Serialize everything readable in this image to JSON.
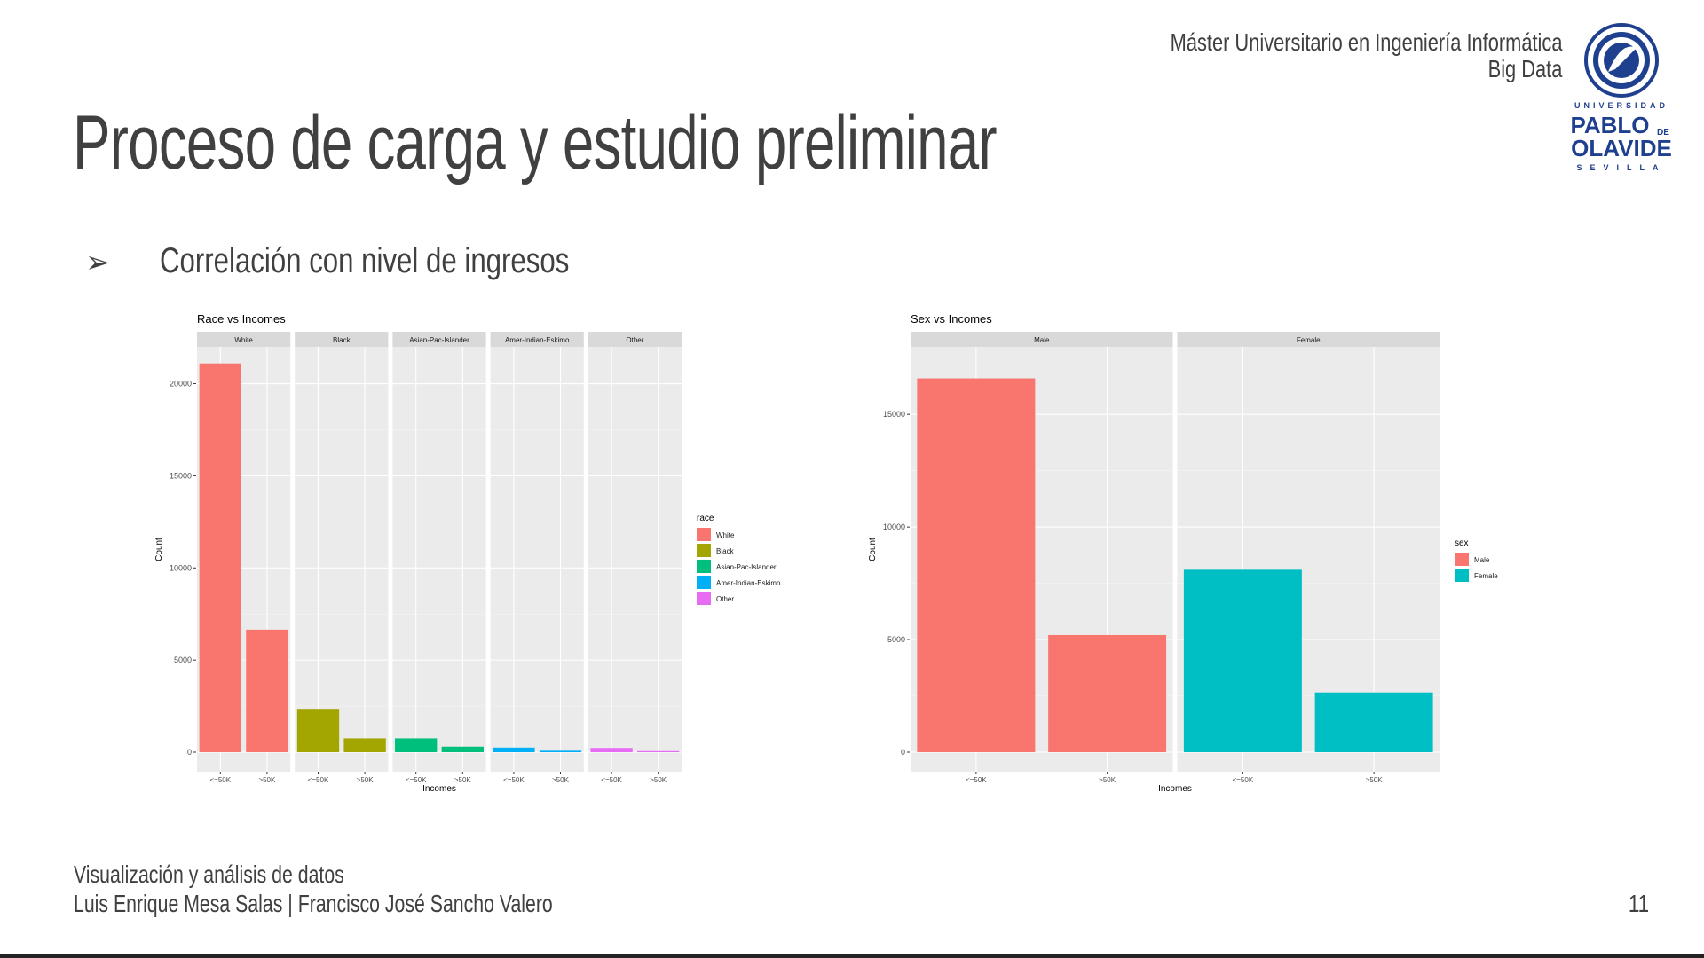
{
  "header": {
    "line1": "Máster Universitario en Ingeniería Informática",
    "line2": "Big Data"
  },
  "logo": {
    "top_text": "UNIVERSIDAD",
    "name_line1": "PABLO",
    "name_de": "DE",
    "name_line2": "OLAVIDE",
    "bottom_text": "SEVILLA",
    "color": "#1f3f8f"
  },
  "title": "Proceso de carga y estudio preliminar",
  "bullet": {
    "marker": "➢",
    "text": "Correlación con nivel de ingresos"
  },
  "footer": {
    "line1": "Visualización y análisis de datos",
    "line2": "Luis Enrique Mesa Salas | Francisco José Sancho Valero",
    "page_number": "11"
  },
  "chart_data": [
    {
      "type": "bar",
      "title": "Race vs Incomes",
      "xlabel": "Incomes",
      "ylabel": "Count",
      "ylim": [
        0,
        22000
      ],
      "yticks": [
        0,
        5000,
        10000,
        15000,
        20000
      ],
      "facets": [
        "White",
        "Black",
        "Asian-Pac-Islander",
        "Amer-Indian-Eskimo",
        "Other"
      ],
      "categories": [
        "<=50K",
        ">50K"
      ],
      "series": [
        {
          "name": "White",
          "color": "#F8766D",
          "values": [
            21100,
            6650
          ]
        },
        {
          "name": "Black",
          "color": "#A3A500",
          "values": [
            2350,
            750
          ]
        },
        {
          "name": "Asian-Pac-Islander",
          "color": "#00BF7D",
          "values": [
            750,
            300
          ]
        },
        {
          "name": "Amer-Indian-Eskimo",
          "color": "#00B0F6",
          "values": [
            250,
            80
          ]
        },
        {
          "name": "Other",
          "color": "#E76BF3",
          "values": [
            230,
            60
          ]
        }
      ],
      "legend": {
        "title": "race",
        "position": "right"
      },
      "grid": true
    },
    {
      "type": "bar",
      "title": "Sex vs Incomes",
      "xlabel": "Incomes",
      "ylabel": "Count",
      "ylim": [
        0,
        18000
      ],
      "yticks": [
        0,
        5000,
        10000,
        15000
      ],
      "facets": [
        "Male",
        "Female"
      ],
      "categories": [
        "<=50K",
        ">50K"
      ],
      "series": [
        {
          "name": "Male",
          "color": "#F8766D",
          "values": [
            16600,
            5200
          ]
        },
        {
          "name": "Female",
          "color": "#00BFC4",
          "values": [
            8100,
            2650
          ]
        }
      ],
      "legend": {
        "title": "sex",
        "position": "right"
      },
      "grid": true
    }
  ]
}
